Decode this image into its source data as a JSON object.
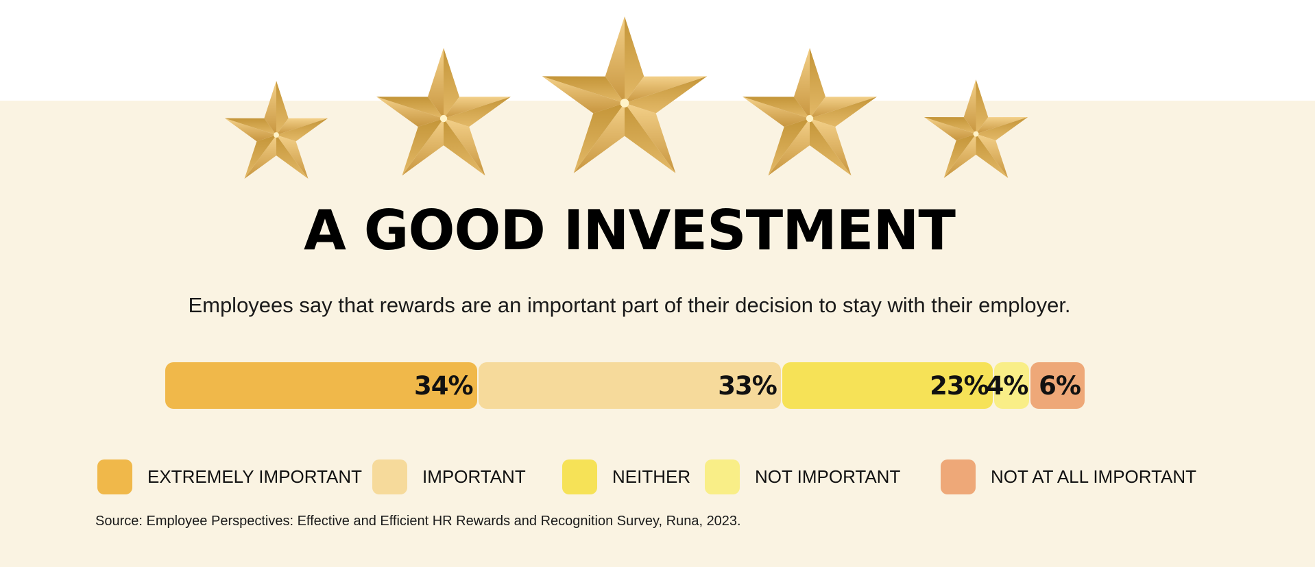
{
  "title": "A GOOD INVESTMENT",
  "subtitle": "Employees say that rewards are an important part of their decision to stay with their employer.",
  "source": "Source: Employee Perspectives: Effective and Efficient HR Rewards and Recognition Survey, Runa, 2023.",
  "colors": {
    "background": "#faf3e2",
    "star": "#d7a84e"
  },
  "decor": {
    "star_count": 5,
    "icon": "star-icon"
  },
  "chart_data": {
    "type": "bar",
    "orientation": "horizontal-stacked",
    "unit": "%",
    "categories": [
      "EXTREMELY IMPORTANT",
      "IMPORTANT",
      "NEITHER",
      "NOT IMPORTANT",
      "NOT AT ALL IMPORTANT"
    ],
    "values": [
      34,
      33,
      23,
      4,
      6
    ],
    "labels": [
      "34%",
      "33%",
      "23%",
      "4%",
      "6%"
    ],
    "colors": [
      "#f0b84a",
      "#f6da9b",
      "#f6e257",
      "#f9ee87",
      "#eea878"
    ],
    "legend": [
      "EXTREMELY IMPORTANT",
      "IMPORTANT",
      "NEITHER",
      "NOT IMPORTANT",
      "NOT AT ALL IMPORTANT"
    ],
    "legend_placement": "bottom",
    "grid": false
  }
}
